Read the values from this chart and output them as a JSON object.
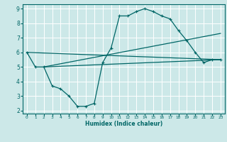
{
  "xlabel": "Humidex (Indice chaleur)",
  "xlim": [
    -0.5,
    23.5
  ],
  "ylim": [
    1.8,
    9.3
  ],
  "yticks": [
    2,
    3,
    4,
    5,
    6,
    7,
    8,
    9
  ],
  "xticks": [
    0,
    1,
    2,
    3,
    4,
    5,
    6,
    7,
    8,
    9,
    10,
    11,
    12,
    13,
    14,
    15,
    16,
    17,
    18,
    19,
    20,
    21,
    22,
    23
  ],
  "bg_color": "#cce8e8",
  "line_color": "#006666",
  "grid_color": "#ffffff",
  "line1_x": [
    0,
    1,
    2,
    3,
    4,
    5,
    6,
    7,
    8,
    9,
    10,
    11,
    12,
    13,
    14,
    15,
    16,
    17,
    18,
    19,
    20,
    21,
    22,
    23
  ],
  "line1_y": [
    6.0,
    5.0,
    5.0,
    3.7,
    3.5,
    3.0,
    2.3,
    2.3,
    2.5,
    5.3,
    6.3,
    8.5,
    8.5,
    8.8,
    9.0,
    8.8,
    8.5,
    8.3,
    7.5,
    6.8,
    6.0,
    5.3,
    5.5,
    5.5
  ],
  "line2_x": [
    0,
    23
  ],
  "line2_y": [
    6.0,
    5.5
  ],
  "line3_x": [
    2,
    23
  ],
  "line3_y": [
    5.0,
    5.5
  ],
  "line4_x": [
    2,
    23
  ],
  "line4_y": [
    5.0,
    7.3
  ]
}
